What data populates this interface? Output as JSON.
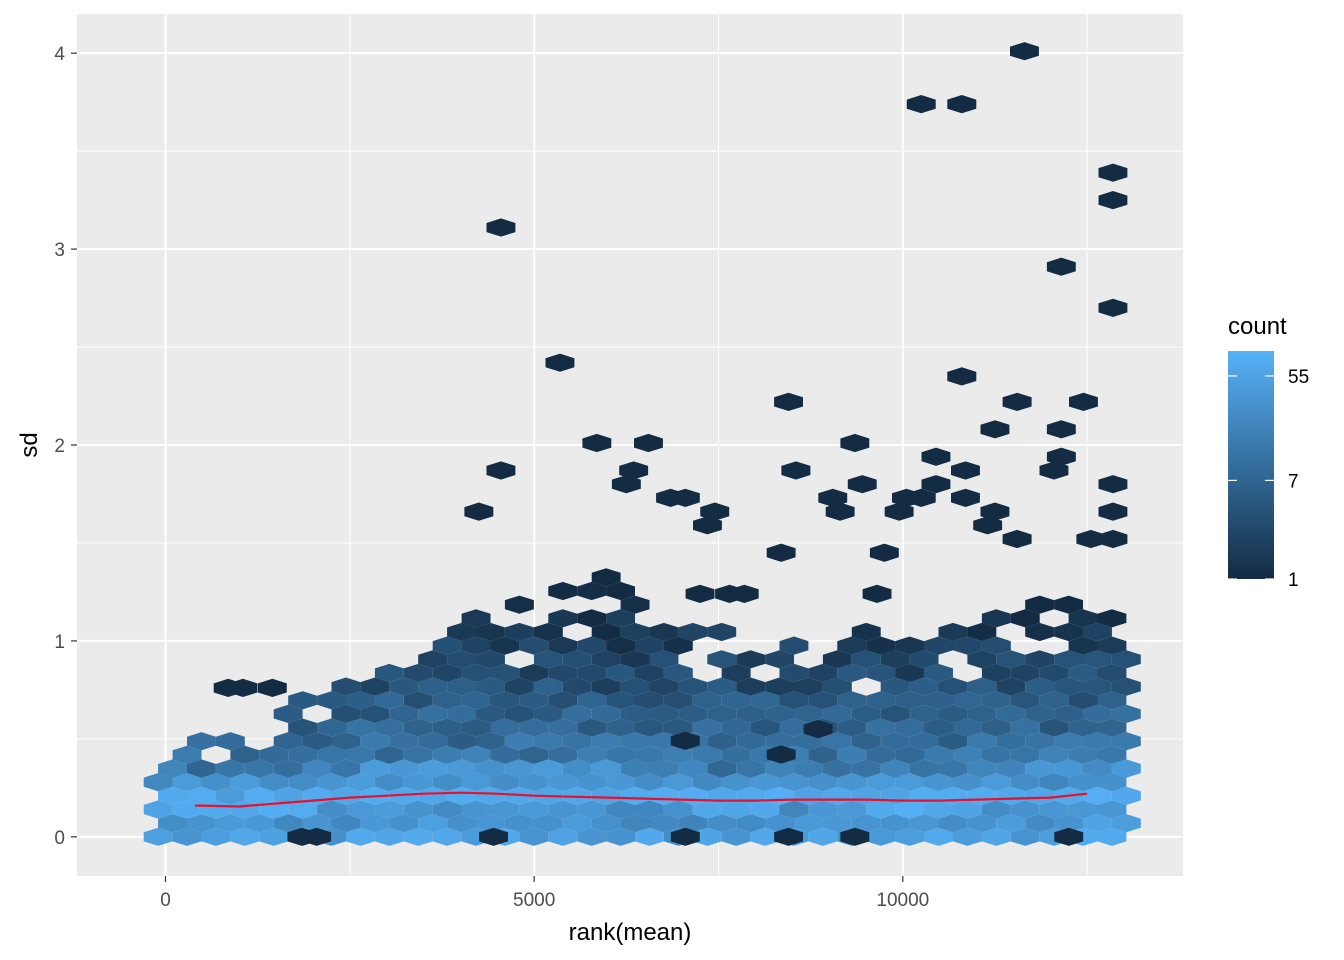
{
  "chart_data": {
    "type": "hexbin",
    "xlabel": "rank(mean)",
    "ylabel": "sd",
    "xlim": [
      -1200,
      13800
    ],
    "ylim": [
      -0.2,
      4.2
    ],
    "x_ticks": [
      0,
      5000,
      10000
    ],
    "x_tick_labels": [
      "0",
      "5000",
      "10000"
    ],
    "y_ticks": [
      0,
      1,
      2,
      3,
      4
    ],
    "y_tick_labels": [
      "0",
      "1",
      "2",
      "3",
      "4"
    ],
    "grid": true,
    "legend": {
      "title": "count",
      "placement": "right",
      "scale": "log",
      "ticks": [
        1,
        7,
        55
      ],
      "tick_labels": [
        "1",
        "7",
        "55"
      ],
      "colors": [
        "#132B43",
        "#56B1F7"
      ],
      "min": 1,
      "max": 90
    },
    "smooth_line": {
      "color": "#E8112D",
      "x": [
        400,
        1000,
        1500,
        2000,
        2500,
        3000,
        3500,
        4000,
        4500,
        5000,
        5500,
        6000,
        6500,
        7000,
        7500,
        8000,
        8500,
        9000,
        9500,
        10000,
        10500,
        11000,
        11500,
        12000,
        12500
      ],
      "y": [
        0.16,
        0.155,
        0.17,
        0.185,
        0.2,
        0.21,
        0.22,
        0.225,
        0.22,
        0.21,
        0.205,
        0.2,
        0.195,
        0.19,
        0.185,
        0.185,
        0.19,
        0.19,
        0.19,
        0.185,
        0.185,
        0.19,
        0.195,
        0.2,
        0.22
      ]
    },
    "outlier_points": [
      {
        "x": 11650,
        "y": 4.01
      },
      {
        "x": 10250,
        "y": 3.74
      },
      {
        "x": 10800,
        "y": 3.74
      },
      {
        "x": 12850,
        "y": 3.39
      },
      {
        "x": 12850,
        "y": 3.25
      },
      {
        "x": 4550,
        "y": 3.11
      },
      {
        "x": 12150,
        "y": 2.91
      },
      {
        "x": 12850,
        "y": 2.7
      },
      {
        "x": 5350,
        "y": 2.42
      },
      {
        "x": 10800,
        "y": 2.35
      },
      {
        "x": 8450,
        "y": 2.22
      },
      {
        "x": 11550,
        "y": 2.22
      },
      {
        "x": 12450,
        "y": 2.22
      },
      {
        "x": 11250,
        "y": 2.08
      },
      {
        "x": 12150,
        "y": 2.08
      },
      {
        "x": 5850,
        "y": 2.01
      },
      {
        "x": 6550,
        "y": 2.01
      },
      {
        "x": 9350,
        "y": 2.01
      },
      {
        "x": 10450,
        "y": 1.94
      },
      {
        "x": 12150,
        "y": 1.94
      },
      {
        "x": 4550,
        "y": 1.87
      },
      {
        "x": 6350,
        "y": 1.87
      },
      {
        "x": 8550,
        "y": 1.87
      },
      {
        "x": 10850,
        "y": 1.87
      },
      {
        "x": 12050,
        "y": 1.87
      },
      {
        "x": 6250,
        "y": 1.8
      },
      {
        "x": 9450,
        "y": 1.8
      },
      {
        "x": 10450,
        "y": 1.8
      },
      {
        "x": 12850,
        "y": 1.8
      },
      {
        "x": 6850,
        "y": 1.73
      },
      {
        "x": 7050,
        "y": 1.73
      },
      {
        "x": 9050,
        "y": 1.73
      },
      {
        "x": 10050,
        "y": 1.73
      },
      {
        "x": 10250,
        "y": 1.73
      },
      {
        "x": 10850,
        "y": 1.73
      },
      {
        "x": 4250,
        "y": 1.66
      },
      {
        "x": 7450,
        "y": 1.66
      },
      {
        "x": 9150,
        "y": 1.66
      },
      {
        "x": 9950,
        "y": 1.66
      },
      {
        "x": 11250,
        "y": 1.66
      },
      {
        "x": 12850,
        "y": 1.66
      },
      {
        "x": 11150,
        "y": 1.59
      },
      {
        "x": 7350,
        "y": 1.59
      },
      {
        "x": 12550,
        "y": 1.52
      },
      {
        "x": 12850,
        "y": 1.52
      },
      {
        "x": 11550,
        "y": 1.52
      },
      {
        "x": 8350,
        "y": 1.45
      },
      {
        "x": 9750,
        "y": 1.45
      },
      {
        "x": 7250,
        "y": 1.24
      },
      {
        "x": 7650,
        "y": 1.24
      },
      {
        "x": 7850,
        "y": 1.24
      },
      {
        "x": 9650,
        "y": 1.24
      },
      {
        "x": 1450,
        "y": 0.76
      },
      {
        "x": 1850,
        "y": 0.0
      },
      {
        "x": 2050,
        "y": 0.0
      },
      {
        "x": 4450,
        "y": 0.0
      },
      {
        "x": 7050,
        "y": 0.0
      },
      {
        "x": 8450,
        "y": 0.0
      },
      {
        "x": 9350,
        "y": 0.0
      },
      {
        "x": 12250,
        "y": 0.0
      },
      {
        "x": 8350,
        "y": 0.42
      },
      {
        "x": 7050,
        "y": 0.49
      },
      {
        "x": 8850,
        "y": 0.55
      },
      {
        "x": 1050,
        "y": 0.76
      },
      {
        "x": 850,
        "y": 0.76
      }
    ]
  }
}
